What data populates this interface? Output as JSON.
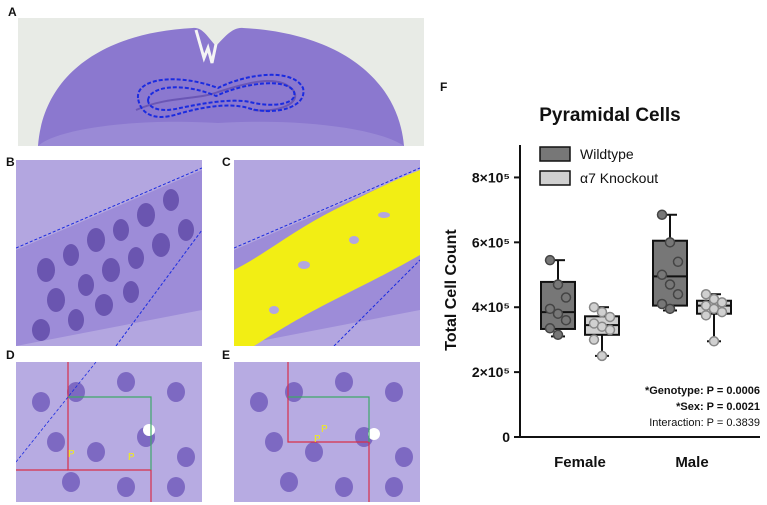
{
  "panels": {
    "a": "A",
    "b": "B",
    "c": "C",
    "d": "D",
    "e": "E",
    "f": "F"
  },
  "micrograph_labels": {
    "d_p1": "P",
    "d_p2": "P",
    "e_p1": "P",
    "e_p2": "P"
  },
  "colors": {
    "tissue": "#8f7bd1",
    "tissue_light": "#b3a6e0",
    "cell": "#6a55b0",
    "nucleus": "#3c2d7a",
    "outline_blue": "#1a2be0",
    "threshold_yellow": "#f2ee14",
    "red_line": "#d8304a",
    "green_line": "#3fa86a",
    "wildtype_fill": "#777777",
    "knockout_fill": "#d0d0d0"
  },
  "chart_data": {
    "type": "box",
    "title": "Pyramidal Cells",
    "ylabel": "Total Cell Count",
    "xlabel": "",
    "categories": [
      "Female",
      "Male"
    ],
    "ylim": [
      0,
      900000
    ],
    "yticks": [
      0,
      200000,
      400000,
      600000,
      800000
    ],
    "ytick_labels": [
      "0",
      "2×10⁵",
      "4×10⁵",
      "6×10⁵",
      "8×10⁵"
    ],
    "legend_position": "top-left",
    "series": [
      {
        "name": "Wildtype",
        "color": "#777777",
        "groups": [
          {
            "min": 310000,
            "q1": 333000,
            "median": 385000,
            "q3": 478000,
            "max": 545000,
            "points": [
              545000,
              470000,
              430000,
              395000,
              380000,
              360000,
              335000,
              315000
            ]
          },
          {
            "min": 390000,
            "q1": 405000,
            "median": 495000,
            "q3": 605000,
            "max": 685000,
            "points": [
              685000,
              600000,
              540000,
              500000,
              470000,
              440000,
              410000,
              395000
            ]
          }
        ]
      },
      {
        "name": "α7 Knockout",
        "color": "#d0d0d0",
        "groups": [
          {
            "min": 250000,
            "q1": 315000,
            "median": 345000,
            "q3": 372000,
            "max": 400000,
            "points": [
              400000,
              385000,
              370000,
              350000,
              340000,
              330000,
              300000,
              250000
            ]
          },
          {
            "min": 295000,
            "q1": 380000,
            "median": 405000,
            "q3": 420000,
            "max": 440000,
            "points": [
              440000,
              425000,
              415000,
              405000,
              395000,
              385000,
              375000,
              295000
            ]
          }
        ]
      }
    ],
    "annotations": [
      {
        "text": "*Genotype: P = 0.0006",
        "bold": true
      },
      {
        "text": "*Sex: P = 0.0021",
        "bold": true
      },
      {
        "text": "Interaction: P = 0.3839",
        "bold": false
      }
    ]
  }
}
